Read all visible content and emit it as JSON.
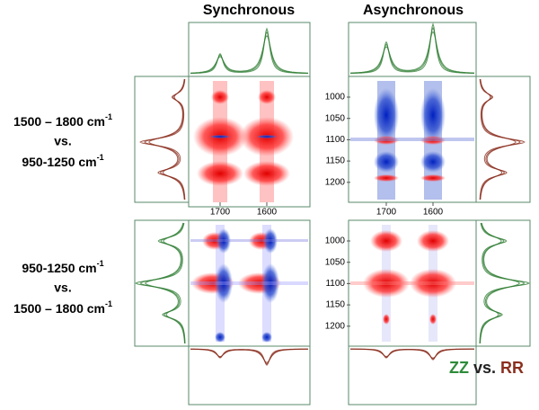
{
  "titles": {
    "left": "Synchronous",
    "right": "Asynchronous"
  },
  "row_labels": [
    {
      "line1": "1500 – 1800 cm",
      "line1_sup": "-1",
      "line2": "vs.",
      "line3": "950-1250 cm",
      "line3_sup": "-1"
    },
    {
      "line1": "950-1250 cm",
      "line1_sup": "-1",
      "line2": "vs.",
      "line3": "1500 – 1800 cm",
      "line3_sup": "-1"
    }
  ],
  "x_ticks": {
    "sync": [
      1700,
      1600
    ],
    "async": [
      1700,
      1600
    ]
  },
  "y_ticks": {
    "top": [
      1000,
      1050,
      1100,
      1150,
      1200
    ],
    "bottom": [
      1000,
      1050,
      1100,
      1150,
      1200
    ]
  },
  "legend": {
    "first": "ZZ",
    "middle": "vs.",
    "second": "RR"
  }
}
